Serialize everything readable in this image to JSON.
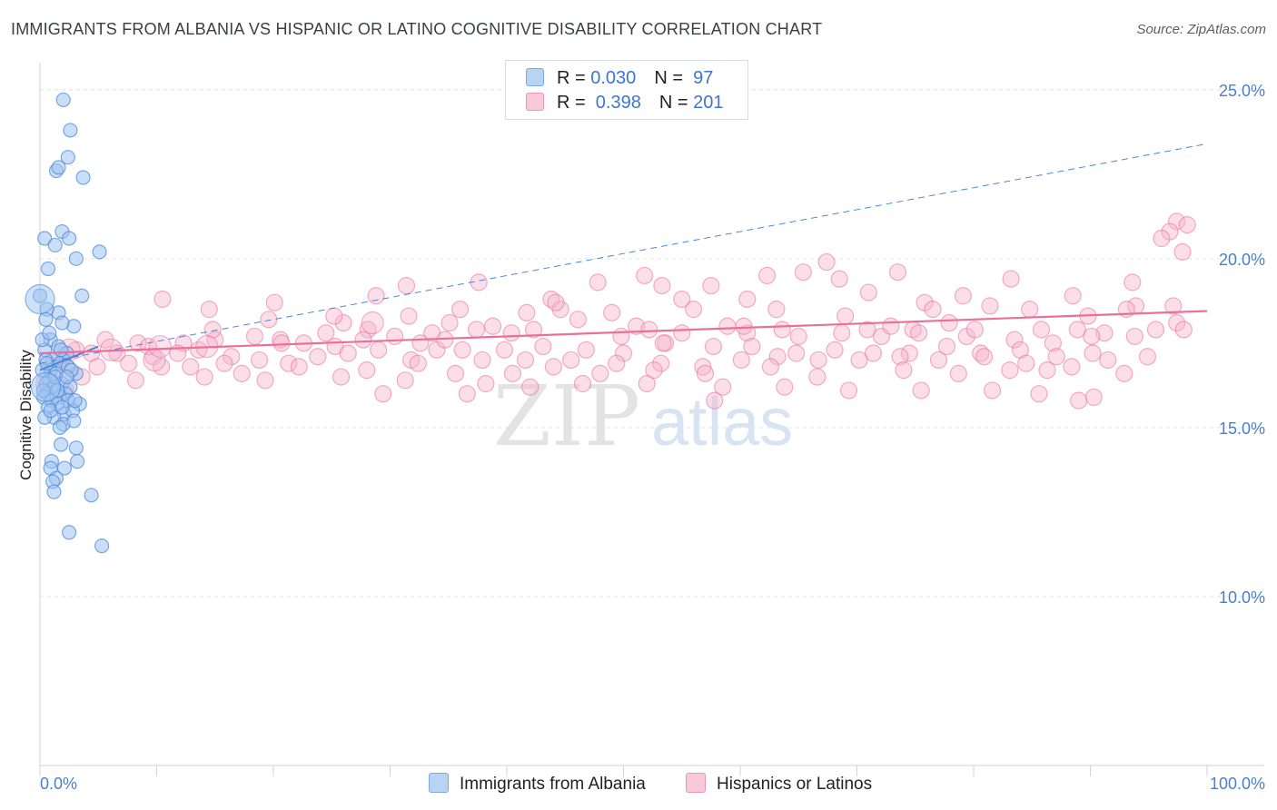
{
  "title": "IMMIGRANTS FROM ALBANIA VS HISPANIC OR LATINO COGNITIVE DISABILITY CORRELATION CHART",
  "source": "Source: ZipAtlas.com",
  "watermark": {
    "zip": "ZIP",
    "atlas": "atlas"
  },
  "legend": {
    "rows": [
      {
        "r_label": "R = ",
        "r_value": "0.030",
        "n_label": "N = ",
        "n_value": " 97",
        "color": "#9ec3f0"
      },
      {
        "r_label": "R = ",
        "r_value": " 0.398",
        "n_label": "N = ",
        "n_value": "201",
        "color": "#f6b6cc"
      }
    ]
  },
  "bottom_legend": [
    {
      "label": "Immigrants from Albania",
      "color": "#9ec3f0"
    },
    {
      "label": "Hispanics or Latinos",
      "color": "#f6b6cc"
    }
  ],
  "chart_data": {
    "type": "scatter",
    "title": "IMMIGRANTS FROM ALBANIA VS HISPANIC OR LATINO COGNITIVE DISABILITY CORRELATION CHART",
    "xlabel": "",
    "ylabel": "Cognitive Disability",
    "xlim": [
      0,
      100
    ],
    "ylim": [
      5,
      25.8
    ],
    "x_tick_labels": [
      "0.0%",
      "100.0%"
    ],
    "y_ticks": [
      10,
      15,
      20,
      25
    ],
    "y_tick_labels": [
      "10.0%",
      "15.0%",
      "20.0%",
      "25.0%"
    ],
    "grid": true,
    "series": [
      {
        "name": "Immigrants from Albania",
        "color": "#4a86d9",
        "fill": "#9ec3f0",
        "trend": {
          "x": [
            0,
            100
          ],
          "y": [
            16.9,
            23.4
          ],
          "style": "dashed"
        },
        "trend_solid": {
          "x": [
            0,
            5
          ],
          "y": [
            16.7,
            17.4
          ]
        },
        "points": [
          [
            2.0,
            24.7
          ],
          [
            2.6,
            23.8
          ],
          [
            2.4,
            23.0
          ],
          [
            1.4,
            22.6
          ],
          [
            1.6,
            22.7
          ],
          [
            3.7,
            22.4
          ],
          [
            1.9,
            20.8
          ],
          [
            0.4,
            20.6
          ],
          [
            2.5,
            20.6
          ],
          [
            1.3,
            20.4
          ],
          [
            3.1,
            20.0
          ],
          [
            5.1,
            20.2
          ],
          [
            0.7,
            19.7
          ],
          [
            0.0,
            18.9
          ],
          [
            3.6,
            18.9
          ],
          [
            1.6,
            18.4
          ],
          [
            0.6,
            18.5
          ],
          [
            2.9,
            18.0
          ],
          [
            0.5,
            18.2
          ],
          [
            1.9,
            18.1
          ],
          [
            0.9,
            17.6
          ],
          [
            1.6,
            17.4
          ],
          [
            2.3,
            17.2
          ],
          [
            0.4,
            17.3
          ],
          [
            2.0,
            17.0
          ],
          [
            1.1,
            17.0
          ],
          [
            0.5,
            17.0
          ],
          [
            1.7,
            16.9
          ],
          [
            0.9,
            16.7
          ],
          [
            3.1,
            16.6
          ],
          [
            2.4,
            16.8
          ],
          [
            1.4,
            16.6
          ],
          [
            0.2,
            16.7
          ],
          [
            0.8,
            16.4
          ],
          [
            1.9,
            16.3
          ],
          [
            2.6,
            16.2
          ],
          [
            0.5,
            16.3
          ],
          [
            1.2,
            16.2
          ],
          [
            2.2,
            16.0
          ],
          [
            0.6,
            16.0
          ],
          [
            1.7,
            15.9
          ],
          [
            0.3,
            15.9
          ],
          [
            2.4,
            15.8
          ],
          [
            1.0,
            15.8
          ],
          [
            3.4,
            15.7
          ],
          [
            1.5,
            15.7
          ],
          [
            0.7,
            15.6
          ],
          [
            2.1,
            15.4
          ],
          [
            2.8,
            15.5
          ],
          [
            1.2,
            15.3
          ],
          [
            0.4,
            15.3
          ],
          [
            2.0,
            15.1
          ],
          [
            1.7,
            15.0
          ],
          [
            2.9,
            15.2
          ],
          [
            3.1,
            14.4
          ],
          [
            1.8,
            14.5
          ],
          [
            1.0,
            14.0
          ],
          [
            3.2,
            14.0
          ],
          [
            0.9,
            13.8
          ],
          [
            2.1,
            13.8
          ],
          [
            1.4,
            13.5
          ],
          [
            1.1,
            13.4
          ],
          [
            1.2,
            13.1
          ],
          [
            4.4,
            13.0
          ],
          [
            2.5,
            11.9
          ],
          [
            5.3,
            11.5
          ],
          [
            0.2,
            17.6
          ],
          [
            0.8,
            17.8
          ],
          [
            1.3,
            16.5
          ],
          [
            2.7,
            16.7
          ],
          [
            0.3,
            16.1
          ],
          [
            1.5,
            16.1
          ],
          [
            2.3,
            16.5
          ],
          [
            0.9,
            15.5
          ],
          [
            1.9,
            15.6
          ],
          [
            3.0,
            15.8
          ],
          [
            0.6,
            16.9
          ],
          [
            1.8,
            17.3
          ]
        ],
        "large_points": [
          [
            0.0,
            18.8
          ],
          [
            0.5,
            16.2
          ]
        ]
      },
      {
        "name": "Hispanics or Latinos",
        "color": "#e8709a",
        "fill": "#f6b6cc",
        "trend": {
          "x": [
            0,
            100
          ],
          "y": [
            17.2,
            18.45
          ],
          "style": "solid"
        },
        "points": [
          [
            97.4,
            21.1
          ],
          [
            98.3,
            21.0
          ],
          [
            96.8,
            20.8
          ],
          [
            96.1,
            20.6
          ],
          [
            97.9,
            20.2
          ],
          [
            67.4,
            19.9
          ],
          [
            65.4,
            19.6
          ],
          [
            73.5,
            19.6
          ],
          [
            93.6,
            19.3
          ],
          [
            51.8,
            19.5
          ],
          [
            47.8,
            19.3
          ],
          [
            68.5,
            19.4
          ],
          [
            83.2,
            19.4
          ],
          [
            53.3,
            19.2
          ],
          [
            71.0,
            19.0
          ],
          [
            37.6,
            19.3
          ],
          [
            31.4,
            19.2
          ],
          [
            57.5,
            19.2
          ],
          [
            62.3,
            19.5
          ],
          [
            79.1,
            18.9
          ],
          [
            88.5,
            18.9
          ],
          [
            10.5,
            18.8
          ],
          [
            28.8,
            18.9
          ],
          [
            43.8,
            18.8
          ],
          [
            55.0,
            18.8
          ],
          [
            60.6,
            18.8
          ],
          [
            75.8,
            18.7
          ],
          [
            81.4,
            18.6
          ],
          [
            93.9,
            18.6
          ],
          [
            97.1,
            18.6
          ],
          [
            20.1,
            18.7
          ],
          [
            14.5,
            18.5
          ],
          [
            36.0,
            18.5
          ],
          [
            41.7,
            18.4
          ],
          [
            44.6,
            18.5
          ],
          [
            49.0,
            18.4
          ],
          [
            56.0,
            18.5
          ],
          [
            63.1,
            18.5
          ],
          [
            69.0,
            18.3
          ],
          [
            76.5,
            18.5
          ],
          [
            84.8,
            18.5
          ],
          [
            89.8,
            18.3
          ],
          [
            93.1,
            18.5
          ],
          [
            97.4,
            18.1
          ],
          [
            19.6,
            18.2
          ],
          [
            26.0,
            18.1
          ],
          [
            31.6,
            18.3
          ],
          [
            35.1,
            18.1
          ],
          [
            38.8,
            18.0
          ],
          [
            46.1,
            18.2
          ],
          [
            51.1,
            18.0
          ],
          [
            58.9,
            18.0
          ],
          [
            63.6,
            17.9
          ],
          [
            70.9,
            17.9
          ],
          [
            74.8,
            17.9
          ],
          [
            77.9,
            18.1
          ],
          [
            85.8,
            17.9
          ],
          [
            88.9,
            17.9
          ],
          [
            91.2,
            17.8
          ],
          [
            95.6,
            17.9
          ],
          [
            98.0,
            17.9
          ],
          [
            24.5,
            17.8
          ],
          [
            28.1,
            17.9
          ],
          [
            33.6,
            17.8
          ],
          [
            37.4,
            17.9
          ],
          [
            42.3,
            17.9
          ],
          [
            49.8,
            17.7
          ],
          [
            52.2,
            17.9
          ],
          [
            55.0,
            17.8
          ],
          [
            60.6,
            17.8
          ],
          [
            65.0,
            17.7
          ],
          [
            68.7,
            17.8
          ],
          [
            72.1,
            17.7
          ],
          [
            75.3,
            17.8
          ],
          [
            79.4,
            17.7
          ],
          [
            83.5,
            17.6
          ],
          [
            86.8,
            17.5
          ],
          [
            90.1,
            17.7
          ],
          [
            93.8,
            17.7
          ],
          [
            5.6,
            17.6
          ],
          [
            8.4,
            17.5
          ],
          [
            12.3,
            17.5
          ],
          [
            15.0,
            17.6
          ],
          [
            18.4,
            17.7
          ],
          [
            20.6,
            17.6
          ],
          [
            22.6,
            17.5
          ],
          [
            25.3,
            17.4
          ],
          [
            27.7,
            17.6
          ],
          [
            30.4,
            17.7
          ],
          [
            32.6,
            17.5
          ],
          [
            36.2,
            17.3
          ],
          [
            39.8,
            17.3
          ],
          [
            43.1,
            17.4
          ],
          [
            46.8,
            17.3
          ],
          [
            50.0,
            17.2
          ],
          [
            53.6,
            17.5
          ],
          [
            57.7,
            17.4
          ],
          [
            61.0,
            17.4
          ],
          [
            64.8,
            17.2
          ],
          [
            68.1,
            17.3
          ],
          [
            71.4,
            17.2
          ],
          [
            74.5,
            17.2
          ],
          [
            77.7,
            17.4
          ],
          [
            80.6,
            17.2
          ],
          [
            84.0,
            17.3
          ],
          [
            87.1,
            17.1
          ],
          [
            90.2,
            17.2
          ],
          [
            94.9,
            17.1
          ],
          [
            3.1,
            17.3
          ],
          [
            4.4,
            17.2
          ],
          [
            6.6,
            17.2
          ],
          [
            9.7,
            17.1
          ],
          [
            11.8,
            17.2
          ],
          [
            13.6,
            17.3
          ],
          [
            16.4,
            17.1
          ],
          [
            18.8,
            17.0
          ],
          [
            21.3,
            16.9
          ],
          [
            23.8,
            17.1
          ],
          [
            26.4,
            17.2
          ],
          [
            29.0,
            17.3
          ],
          [
            31.8,
            17.0
          ],
          [
            34.0,
            17.3
          ],
          [
            37.9,
            17.0
          ],
          [
            41.6,
            17.0
          ],
          [
            45.5,
            17.0
          ],
          [
            49.4,
            16.9
          ],
          [
            53.2,
            16.9
          ],
          [
            56.8,
            16.8
          ],
          [
            60.1,
            17.0
          ],
          [
            63.2,
            17.1
          ],
          [
            66.7,
            17.0
          ],
          [
            70.2,
            17.0
          ],
          [
            73.7,
            17.1
          ],
          [
            77.0,
            17.0
          ],
          [
            80.9,
            17.1
          ],
          [
            84.5,
            16.9
          ],
          [
            88.4,
            16.8
          ],
          [
            91.5,
            17.0
          ],
          [
            1.7,
            17.0
          ],
          [
            4.9,
            16.8
          ],
          [
            7.6,
            16.9
          ],
          [
            10.4,
            16.8
          ],
          [
            12.9,
            16.8
          ],
          [
            15.8,
            16.9
          ],
          [
            17.3,
            16.6
          ],
          [
            22.2,
            16.8
          ],
          [
            28.0,
            16.7
          ],
          [
            32.4,
            16.9
          ],
          [
            35.6,
            16.6
          ],
          [
            40.5,
            16.6
          ],
          [
            44.0,
            16.8
          ],
          [
            48.0,
            16.6
          ],
          [
            52.6,
            16.7
          ],
          [
            57.0,
            16.6
          ],
          [
            62.6,
            16.8
          ],
          [
            66.6,
            16.5
          ],
          [
            74.0,
            16.7
          ],
          [
            78.7,
            16.6
          ],
          [
            83.1,
            16.7
          ],
          [
            86.3,
            16.7
          ],
          [
            92.9,
            16.6
          ],
          [
            3.6,
            16.5
          ],
          [
            8.2,
            16.4
          ],
          [
            14.1,
            16.5
          ],
          [
            19.3,
            16.4
          ],
          [
            25.8,
            16.5
          ],
          [
            31.3,
            16.4
          ],
          [
            38.2,
            16.3
          ],
          [
            42.0,
            16.2
          ],
          [
            46.5,
            16.3
          ],
          [
            52.0,
            16.3
          ],
          [
            58.5,
            16.2
          ],
          [
            63.8,
            16.2
          ],
          [
            69.3,
            16.1
          ],
          [
            75.5,
            16.1
          ],
          [
            81.6,
            16.1
          ],
          [
            85.6,
            16.0
          ],
          [
            90.3,
            15.9
          ],
          [
            2.2,
            16.1
          ],
          [
            36.6,
            16.0
          ],
          [
            57.8,
            15.8
          ],
          [
            89.0,
            15.8
          ],
          [
            29.4,
            16.0
          ],
          [
            20.7,
            17.5
          ],
          [
            9.3,
            17.4
          ],
          [
            25.2,
            18.3
          ],
          [
            14.8,
            17.9
          ],
          [
            40.4,
            17.8
          ],
          [
            53.4,
            17.5
          ],
          [
            72.9,
            18.0
          ],
          [
            80.1,
            17.9
          ],
          [
            60.3,
            18.0
          ],
          [
            34.7,
            17.6
          ],
          [
            44.2,
            18.7
          ]
        ],
        "large_points": [
          [
            0.6,
            16.3
          ],
          [
            2.5,
            17.3
          ],
          [
            6.1,
            17.3
          ],
          [
            9.8,
            17.0
          ],
          [
            10.3,
            17.4
          ],
          [
            2.2,
            16.7
          ],
          [
            14.3,
            17.4
          ],
          [
            28.5,
            18.1
          ]
        ]
      }
    ]
  }
}
